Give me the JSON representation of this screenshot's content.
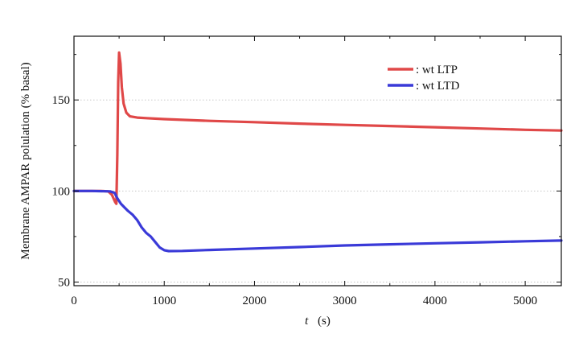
{
  "chart_data": {
    "type": "line",
    "title": "",
    "xlabel_var": "t",
    "xlabel_unit": "(s)",
    "ylabel": "Membrane AMPAR polulation (% basal)",
    "xlim": [
      0,
      5400
    ],
    "ylim": [
      48,
      185
    ],
    "x_ticks": [
      0,
      1000,
      2000,
      3000,
      4000,
      5000
    ],
    "y_ticks": [
      50,
      100,
      150
    ],
    "grid": true,
    "legend_position": "top-right",
    "series": [
      {
        "name": ": wt LTP",
        "color": "#e04848",
        "points": [
          [
            0,
            100
          ],
          [
            100,
            100
          ],
          [
            200,
            100
          ],
          [
            300,
            100
          ],
          [
            380,
            99.8
          ],
          [
            420,
            98
          ],
          [
            455,
            94
          ],
          [
            470,
            93
          ],
          [
            480,
            120
          ],
          [
            490,
            160
          ],
          [
            500,
            176
          ],
          [
            515,
            170
          ],
          [
            530,
            157
          ],
          [
            550,
            148
          ],
          [
            580,
            143
          ],
          [
            620,
            141
          ],
          [
            700,
            140.3
          ],
          [
            800,
            140
          ],
          [
            1000,
            139.5
          ],
          [
            1500,
            138.5
          ],
          [
            2000,
            137.8
          ],
          [
            2500,
            137
          ],
          [
            3000,
            136.3
          ],
          [
            3500,
            135.7
          ],
          [
            4000,
            135
          ],
          [
            4500,
            134.3
          ],
          [
            5000,
            133.6
          ],
          [
            5400,
            133.2
          ]
        ]
      },
      {
        "name": ": wt LTD",
        "color": "#3a3ad8",
        "points": [
          [
            0,
            100
          ],
          [
            200,
            100
          ],
          [
            400,
            99.8
          ],
          [
            450,
            99
          ],
          [
            480,
            96
          ],
          [
            520,
            93
          ],
          [
            560,
            91
          ],
          [
            600,
            89
          ],
          [
            650,
            87
          ],
          [
            700,
            84
          ],
          [
            750,
            80
          ],
          [
            800,
            77
          ],
          [
            850,
            75
          ],
          [
            900,
            72
          ],
          [
            950,
            69
          ],
          [
            1000,
            67.5
          ],
          [
            1050,
            67
          ],
          [
            1200,
            67.1
          ],
          [
            1500,
            67.6
          ],
          [
            2000,
            68.4
          ],
          [
            2500,
            69.2
          ],
          [
            3000,
            70.1
          ],
          [
            3500,
            70.7
          ],
          [
            4000,
            71.3
          ],
          [
            4500,
            71.8
          ],
          [
            5000,
            72.4
          ],
          [
            5400,
            72.8
          ]
        ]
      }
    ]
  }
}
